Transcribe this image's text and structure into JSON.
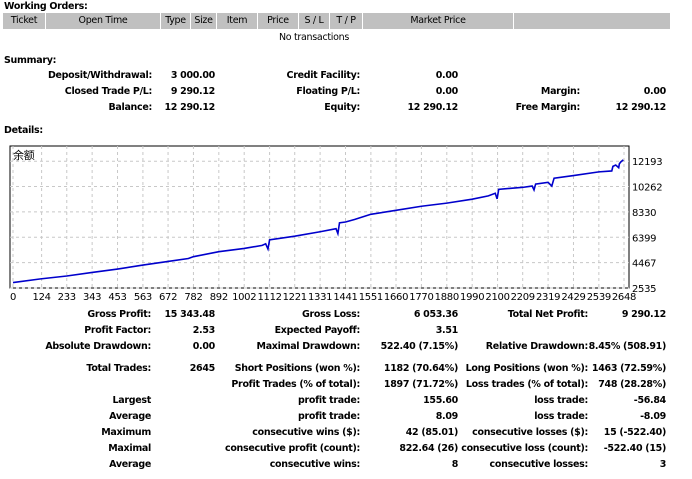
{
  "working_orders": {
    "title": "Working Orders:",
    "columns": [
      "Ticket",
      "Open Time",
      "Type",
      "Size",
      "Item",
      "Price",
      "S / L",
      "T / P",
      "Market Price",
      ""
    ],
    "empty": "No transactions"
  },
  "summary": {
    "title": "Summary:",
    "rows": [
      [
        "Deposit/Withdrawal:",
        "3 000.00",
        "Credit Facility:",
        "0.00",
        "",
        ""
      ],
      [
        "Closed Trade P/L:",
        "9 290.12",
        "Floating P/L:",
        "0.00",
        "Margin:",
        "0.00"
      ],
      [
        "Balance:",
        "12 290.12",
        "Equity:",
        "12 290.12",
        "Free Margin:",
        "12 290.12"
      ]
    ]
  },
  "details": {
    "title": "Details:"
  },
  "chart_data": {
    "type": "line",
    "title": "余额",
    "series": [
      {
        "name": "余额",
        "color": "#0000cc",
        "x": [
          0,
          120,
          233,
          343,
          453,
          563,
          672,
          760,
          782,
          892,
          1002,
          1080,
          1095,
          1105,
          1112,
          1221,
          1331,
          1400,
          1408,
          1415,
          1441,
          1480,
          1551,
          1660,
          1770,
          1880,
          1990,
          2060,
          2090,
          2098,
          2105,
          2209,
          2250,
          2258,
          2265,
          2319,
          2335,
          2345,
          2429,
          2539,
          2595,
          2600,
          2612,
          2625,
          2628,
          2635,
          2645
        ],
        "y": [
          2950,
          3230,
          3450,
          3720,
          3980,
          4280,
          4560,
          4780,
          4920,
          5300,
          5550,
          5780,
          5900,
          5500,
          6200,
          6480,
          6820,
          7050,
          6680,
          7500,
          7560,
          7750,
          8150,
          8450,
          8760,
          9000,
          9300,
          9550,
          9750,
          9320,
          10050,
          10200,
          10300,
          10000,
          10450,
          10580,
          10300,
          10900,
          11100,
          11380,
          11450,
          11800,
          11900,
          11700,
          12000,
          12150,
          12290
        ]
      }
    ],
    "xticks": [
      0,
      124,
      233,
      343,
      453,
      563,
      672,
      782,
      892,
      1002,
      1112,
      1221,
      1331,
      1441,
      1551,
      1660,
      1770,
      1880,
      1990,
      2100,
      2209,
      2319,
      2429,
      2539,
      2648
    ],
    "yticks": [
      12193,
      10262,
      8330,
      6399,
      4467,
      2535
    ],
    "xlim": [
      0,
      2648
    ],
    "ylim": [
      2535,
      13350
    ],
    "grid": true
  },
  "stats": {
    "rows": [
      [
        "Gross Profit:",
        "15 343.48",
        "Gross Loss:",
        "6 053.36",
        "Total Net Profit:",
        "9 290.12"
      ],
      [
        "Profit Factor:",
        "2.53",
        "Expected Payoff:",
        "3.51",
        "",
        ""
      ],
      [
        "Absolute Drawdown:",
        "0.00",
        "Maximal Drawdown:",
        "522.40 (7.15%)",
        "Relative Drawdown:",
        "8.45% (508.91)"
      ],
      [
        "Total Trades:",
        "2645",
        "Short Positions (won %):",
        "1182 (70.64%)",
        "Long Positions (won %):",
        "1463 (72.59%)"
      ],
      [
        "",
        "",
        "Profit Trades (% of total):",
        "1897 (71.72%)",
        "Loss trades (% of total):",
        "748 (28.28%)"
      ],
      [
        "Largest",
        "",
        "profit trade:",
        "155.60",
        "loss trade:",
        "-56.84"
      ],
      [
        "Average",
        "",
        "profit trade:",
        "8.09",
        "loss trade:",
        "-8.09"
      ],
      [
        "Maximum",
        "",
        "consecutive wins ($):",
        "42 (85.01)",
        "consecutive losses ($):",
        "15 (-522.40)"
      ],
      [
        "Maximal",
        "",
        "consecutive profit (count):",
        "822.64 (26)",
        "consecutive loss (count):",
        "-522.40 (15)"
      ],
      [
        "Average",
        "",
        "consecutive wins:",
        "8",
        "consecutive losses:",
        "3"
      ]
    ]
  }
}
